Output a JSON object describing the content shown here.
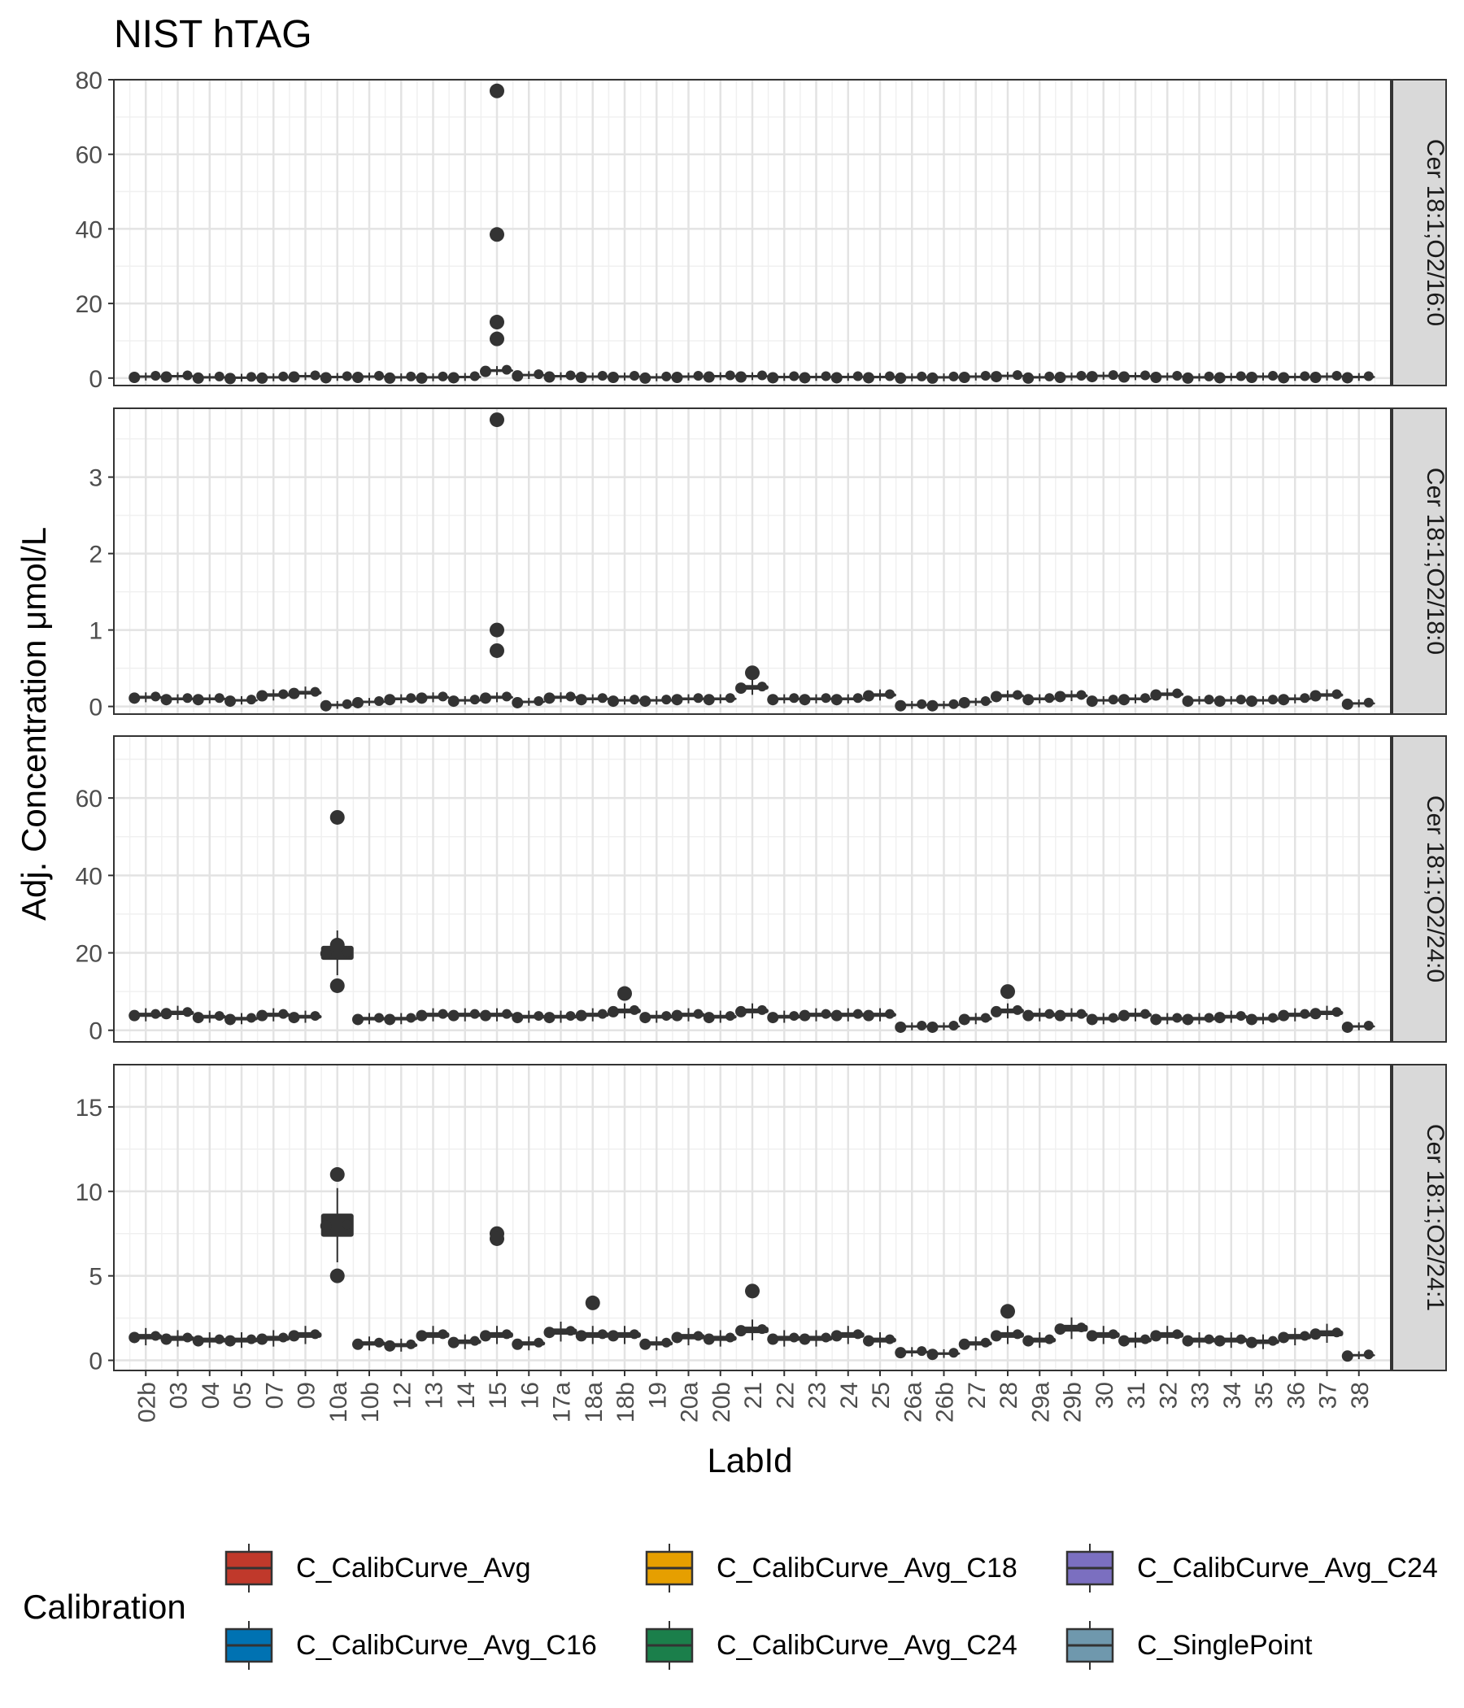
{
  "chart_data": {
    "type": "boxplot",
    "title": "NIST hTAG",
    "xlabel": "LabId",
    "ylabel": "Adj. Concentration μmol/L",
    "grid": true,
    "categories": [
      "02b",
      "03",
      "04",
      "05",
      "07",
      "09",
      "10a",
      "10b",
      "12",
      "13",
      "14",
      "15",
      "16",
      "17a",
      "18a",
      "18b",
      "19",
      "20a",
      "20b",
      "21",
      "22",
      "23",
      "24",
      "25",
      "26a",
      "26b",
      "27",
      "28",
      "29a",
      "29b",
      "30",
      "31",
      "32",
      "33",
      "34",
      "35",
      "36",
      "37",
      "38"
    ],
    "legend": {
      "title": "Calibration",
      "position": "bottom",
      "entries": [
        {
          "label": "C_CalibCurve_Avg",
          "color": "#c0392b"
        },
        {
          "label": "C_CalibCurve_Avg_C16",
          "color": "#0072b2"
        },
        {
          "label": "C_CalibCurve_Avg_C18",
          "color": "#e69f00"
        },
        {
          "label": "C_CalibCurve_Avg_C24",
          "color": "#1b7f4b"
        },
        {
          "label": "C_CalibCurve_Avg_C24",
          "color": "#7b6fc0"
        },
        {
          "label": "C_SinglePoint",
          "color": "#6f98ad"
        }
      ]
    },
    "panels": [
      {
        "strip": "Cer 18:1;O2/16:0",
        "ylim": [
          -2,
          80
        ],
        "yticks": [
          0,
          20,
          40,
          60,
          80
        ],
        "values": [
          0.4,
          0.5,
          0.2,
          0.1,
          0.2,
          0.5,
          0.3,
          0.4,
          0.2,
          0.2,
          0.3,
          2.0,
          0.8,
          0.5,
          0.4,
          0.4,
          0.2,
          0.4,
          0.5,
          0.5,
          0.3,
          0.3,
          0.3,
          0.3,
          0.2,
          0.2,
          0.4,
          0.6,
          0.2,
          0.4,
          0.6,
          0.5,
          0.4,
          0.2,
          0.3,
          0.4,
          0.3,
          0.4,
          0.3
        ],
        "outliers": [
          {
            "category": "15",
            "values": [
              77,
              38.5,
              15,
              10.5
            ]
          }
        ]
      },
      {
        "strip": "Cer 18:1;O2/18:0",
        "ylim": [
          -0.1,
          3.9
        ],
        "yticks": [
          0,
          1,
          2,
          3
        ],
        "values": [
          0.12,
          0.1,
          0.1,
          0.08,
          0.15,
          0.18,
          0.02,
          0.06,
          0.1,
          0.12,
          0.08,
          0.12,
          0.06,
          0.12,
          0.1,
          0.08,
          0.08,
          0.1,
          0.1,
          0.25,
          0.1,
          0.1,
          0.1,
          0.15,
          0.02,
          0.02,
          0.06,
          0.14,
          0.1,
          0.14,
          0.08,
          0.1,
          0.16,
          0.08,
          0.08,
          0.08,
          0.1,
          0.15,
          0.04
        ],
        "outliers": [
          {
            "category": "15",
            "values": [
              3.75,
              1.0,
              0.73
            ]
          },
          {
            "category": "21",
            "values": [
              0.44
            ]
          }
        ]
      },
      {
        "strip": "Cer 18:1;O2/24:0",
        "ylim": [
          -3,
          76
        ],
        "yticks": [
          0,
          20,
          40,
          60
        ],
        "values": [
          4.0,
          4.5,
          3.5,
          3.0,
          4.0,
          3.5,
          20.0,
          3.0,
          3.0,
          4.0,
          4.0,
          4.0,
          3.5,
          3.5,
          4.0,
          5.0,
          3.5,
          4.0,
          3.5,
          5.0,
          3.5,
          4.0,
          4.0,
          4.0,
          1.0,
          1.0,
          3.0,
          5.0,
          4.0,
          4.0,
          3.0,
          4.0,
          3.0,
          3.0,
          3.5,
          3.0,
          4.0,
          4.5,
          1.0
        ],
        "outliers": [
          {
            "category": "10a",
            "values": [
              55,
              22,
              11.5
            ]
          },
          {
            "category": "18b",
            "values": [
              9.5
            ]
          },
          {
            "category": "28",
            "values": [
              10
            ]
          }
        ]
      },
      {
        "strip": "Cer 18:1;O2/24:1",
        "ylim": [
          -0.6,
          17.5
        ],
        "yticks": [
          0,
          5,
          10,
          15
        ],
        "values": [
          1.4,
          1.3,
          1.2,
          1.2,
          1.3,
          1.5,
          8.0,
          1.0,
          0.9,
          1.5,
          1.1,
          1.5,
          1.0,
          1.7,
          1.5,
          1.5,
          1.0,
          1.4,
          1.3,
          1.8,
          1.3,
          1.3,
          1.5,
          1.2,
          0.5,
          0.4,
          1.0,
          1.5,
          1.2,
          1.9,
          1.5,
          1.2,
          1.5,
          1.2,
          1.2,
          1.1,
          1.4,
          1.6,
          0.3
        ],
        "outliers": [
          {
            "category": "10a",
            "values": [
              11,
              5
            ]
          },
          {
            "category": "15",
            "values": [
              7.5,
              7.2
            ]
          },
          {
            "category": "18a",
            "values": [
              3.4
            ]
          },
          {
            "category": "21",
            "values": [
              4.1
            ]
          },
          {
            "category": "28",
            "values": [
              2.9
            ]
          }
        ]
      }
    ]
  }
}
